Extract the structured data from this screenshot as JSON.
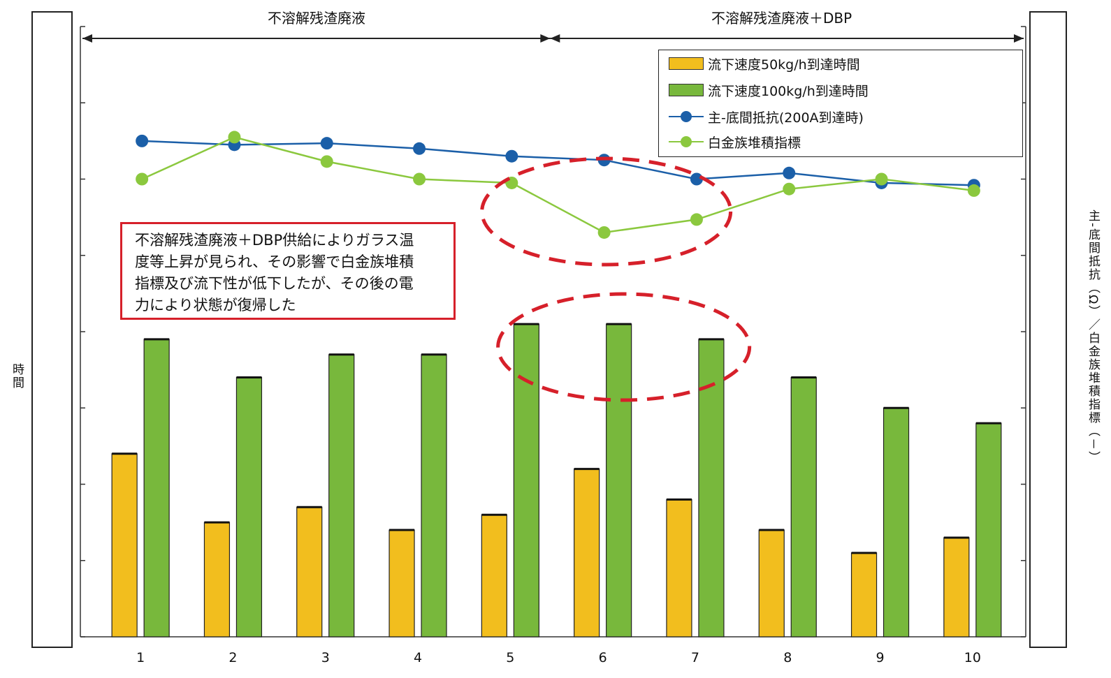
{
  "chart_data": {
    "type": "bar",
    "categories": [
      "1",
      "2",
      "3",
      "4",
      "5",
      "6",
      "7",
      "8",
      "9",
      "10"
    ],
    "series": [
      {
        "name": "流下速度50kg/h到達時間",
        "kind": "bar",
        "axis": "left",
        "color": "#f2be1e",
        "values": [
          2.4,
          1.5,
          1.7,
          1.4,
          1.6,
          2.2,
          1.8,
          1.4,
          1.1,
          1.3
        ]
      },
      {
        "name": "流下速度100kg/h到達時間",
        "kind": "bar",
        "axis": "left",
        "color": "#78b83c",
        "values": [
          3.9,
          3.4,
          3.7,
          3.7,
          4.1,
          4.1,
          3.9,
          3.4,
          3.0,
          2.8
        ]
      },
      {
        "name": "主-底間抵抗(200A到達時)",
        "kind": "line",
        "axis": "right",
        "color": "#1b5fa8",
        "values": [
          6.5,
          6.45,
          6.47,
          6.4,
          6.3,
          6.25,
          6.0,
          6.08,
          5.95,
          5.92
        ]
      },
      {
        "name": "白金族堆積指標",
        "kind": "line",
        "axis": "right",
        "color": "#8bc83e",
        "values": [
          6.0,
          6.55,
          6.23,
          6.0,
          5.95,
          5.3,
          5.47,
          5.87,
          6.0,
          5.85
        ]
      }
    ],
    "ylim": [
      0,
      8
    ],
    "y2lim": [
      0,
      8
    ],
    "ylabel": "時間",
    "y2label": "主-底間抵抗（Ω）／白金族堆積指標（－）",
    "xlabel": "",
    "grid": false,
    "legend_position": "top-right",
    "periods": [
      {
        "label": "不溶解残渣廃液",
        "from": "1",
        "to": "5"
      },
      {
        "label": "不溶解残渣廃液＋DBP",
        "from": "5",
        "to": "10"
      }
    ],
    "annotation": {
      "lines": [
        "不溶解残渣廃液＋DBP供給によりガラス温",
        "度等上昇が見られ、その影響で白金族堆積",
        "指標及び流下性が低下したが、その後の電",
        "力により状態が復帰した"
      ],
      "border_color": "#d6202a"
    },
    "highlights": [
      {
        "target": "lines",
        "categories": [
          "5",
          "6",
          "7"
        ]
      },
      {
        "target": "bars",
        "categories": [
          "5",
          "6",
          "7"
        ]
      }
    ]
  }
}
